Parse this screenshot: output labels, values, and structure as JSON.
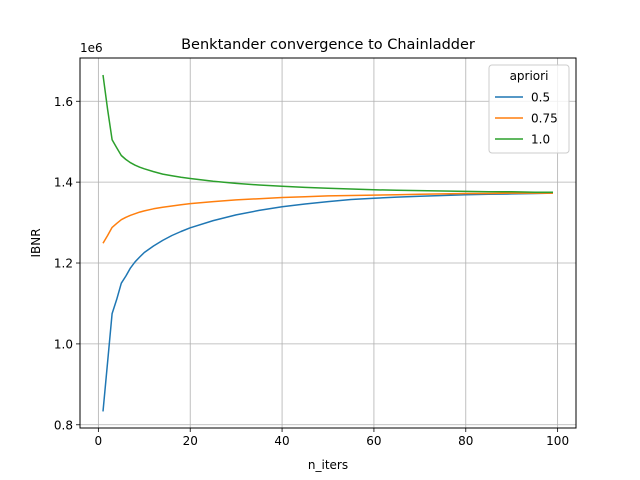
{
  "chart_data": {
    "type": "line",
    "title": "Benktander convergence to Chainladder",
    "xlabel": "n_iters",
    "ylabel": "IBNR",
    "y_scale_label": "1e6",
    "y_scale": 1000000,
    "xlim": [
      -4,
      104
    ],
    "ylim": [
      0.792,
      1.707
    ],
    "x_ticks": [
      0,
      20,
      40,
      60,
      80,
      100
    ],
    "y_ticks": [
      0.8,
      1.0,
      1.2,
      1.4,
      1.6
    ],
    "grid": true,
    "legend": {
      "title": "apriori",
      "placement": "top-right"
    },
    "x": [
      1,
      2,
      3,
      4,
      5,
      6,
      7,
      8,
      9,
      10,
      12,
      14,
      16,
      18,
      20,
      25,
      30,
      35,
      40,
      45,
      50,
      55,
      60,
      65,
      70,
      75,
      80,
      85,
      90,
      95,
      99
    ],
    "series": [
      {
        "name": "0.5",
        "color": "#1f77b4",
        "values": [
          0.833,
          0.955,
          1.075,
          1.11,
          1.15,
          1.168,
          1.188,
          1.203,
          1.215,
          1.226,
          1.242,
          1.256,
          1.268,
          1.278,
          1.287,
          1.305,
          1.319,
          1.33,
          1.339,
          1.346,
          1.352,
          1.357,
          1.36,
          1.363,
          1.365,
          1.367,
          1.369,
          1.37,
          1.371,
          1.372,
          1.373
        ]
      },
      {
        "name": "0.75",
        "color": "#ff7f0e",
        "values": [
          1.249,
          1.268,
          1.288,
          1.298,
          1.307,
          1.313,
          1.318,
          1.322,
          1.326,
          1.329,
          1.334,
          1.338,
          1.341,
          1.344,
          1.347,
          1.352,
          1.356,
          1.359,
          1.362,
          1.364,
          1.366,
          1.367,
          1.368,
          1.369,
          1.37,
          1.371,
          1.372,
          1.372,
          1.373,
          1.373,
          1.373
        ]
      },
      {
        "name": "1.0",
        "color": "#2ca02c",
        "values": [
          1.665,
          1.58,
          1.505,
          1.485,
          1.466,
          1.456,
          1.448,
          1.442,
          1.437,
          1.433,
          1.426,
          1.42,
          1.416,
          1.412,
          1.409,
          1.402,
          1.397,
          1.393,
          1.39,
          1.387,
          1.385,
          1.383,
          1.381,
          1.38,
          1.379,
          1.378,
          1.377,
          1.376,
          1.376,
          1.375,
          1.375
        ]
      }
    ]
  }
}
